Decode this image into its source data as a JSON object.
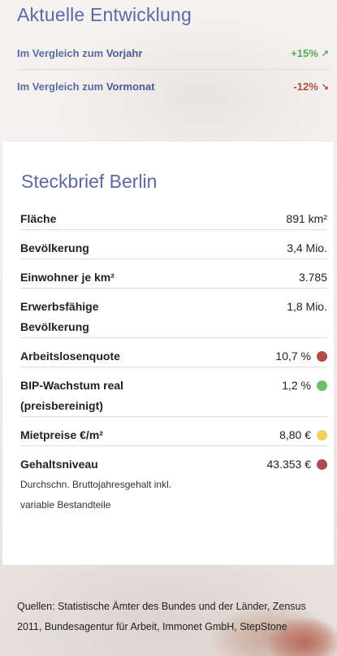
{
  "trend": {
    "title": "Aktuelle Entwicklung",
    "rows": [
      {
        "prefix": "Im Vergleich zum ",
        "emph": "Vorjahr",
        "value": "+15%",
        "arrow": "↗",
        "direction": "up",
        "color": "#5aa85a"
      },
      {
        "prefix": "Im Vergleich zum ",
        "emph": "Vormonat",
        "value": "-12%",
        "arrow": "↘",
        "direction": "down",
        "color": "#b34b3a"
      }
    ]
  },
  "profile": {
    "title": "Steckbrief Berlin",
    "facts": [
      {
        "name": "Fläche",
        "value": "891 km²"
      },
      {
        "name": "Bevölkerung",
        "value": "3,4 Mio."
      },
      {
        "name": "Einwohner je km²",
        "value": "3.785"
      },
      {
        "name": "Erwerbsfähige Bevölkerung",
        "value": "1,8 Mio."
      },
      {
        "name": "Arbeitslosenquote",
        "value": "10,7 %",
        "indicator": "red",
        "indicator_color": "#b34b4b"
      },
      {
        "name": "BIP-Wachstum real (preisbereinigt)",
        "value": "1,2 %",
        "indicator": "green",
        "indicator_color": "#6cbf6c"
      },
      {
        "name": "Mietpreise €/m²",
        "value": "8,80 €",
        "indicator": "yellow",
        "indicator_color": "#f0d25a"
      },
      {
        "name": "Gehaltsniveau",
        "note": "Durchschn. Bruttojahresgehalt inkl. variable Bestandteile",
        "value": "43.353 €",
        "indicator": "red",
        "indicator_color": "#b34b4b"
      }
    ]
  },
  "sources": "Quellen: Statistische Ämter des Bundes und der Länder, Zensus 2011, Bundesagentur für Arbeit, Immonet GmbH, StepStone"
}
